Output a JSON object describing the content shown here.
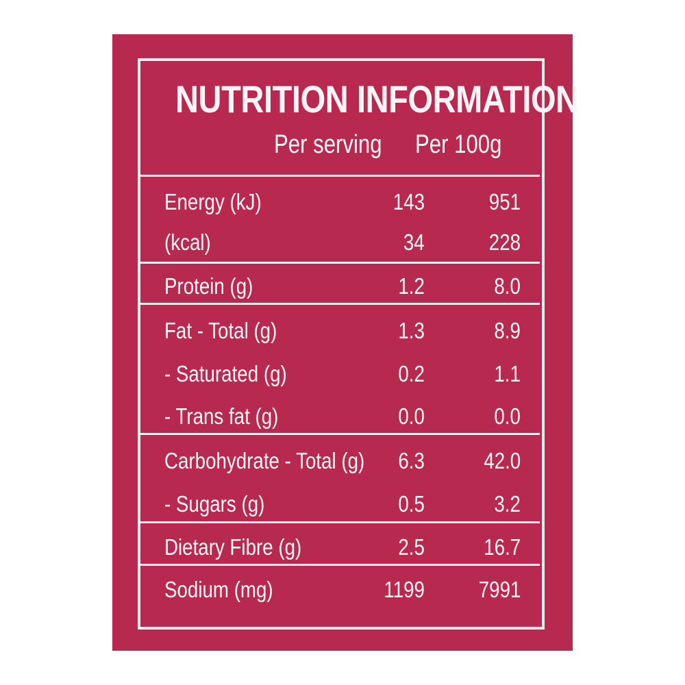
{
  "panel": {
    "background": "#b8294f",
    "text_color": "#fbf4f6"
  },
  "title": "NUTRITION INFORMATION",
  "columns": {
    "per_serving": "Per serving",
    "per_100g": "Per 100g"
  },
  "rows": [
    {
      "label": "Energy (kJ)",
      "per_serving": "143",
      "per_100g": "951"
    },
    {
      "label": "(kcal)",
      "per_serving": "34",
      "per_100g": "228"
    },
    {
      "label": "Protein (g)",
      "per_serving": "1.2",
      "per_100g": "8.0"
    },
    {
      "label": "Fat - Total (g)",
      "per_serving": "1.3",
      "per_100g": "8.9"
    },
    {
      "label": "- Saturated (g)",
      "per_serving": "0.2",
      "per_100g": "1.1"
    },
    {
      "label": "- Trans fat (g)",
      "per_serving": "0.0",
      "per_100g": "0.0"
    },
    {
      "label": "Carbohydrate - Total (g)",
      "per_serving": "6.3",
      "per_100g": "42.0"
    },
    {
      "label": "- Sugars (g)",
      "per_serving": "0.5",
      "per_100g": "3.2"
    },
    {
      "label": "Dietary Fibre (g)",
      "per_serving": "2.5",
      "per_100g": "16.7"
    },
    {
      "label": "Sodium (mg)",
      "per_serving": "1199",
      "per_100g": "7991"
    }
  ]
}
